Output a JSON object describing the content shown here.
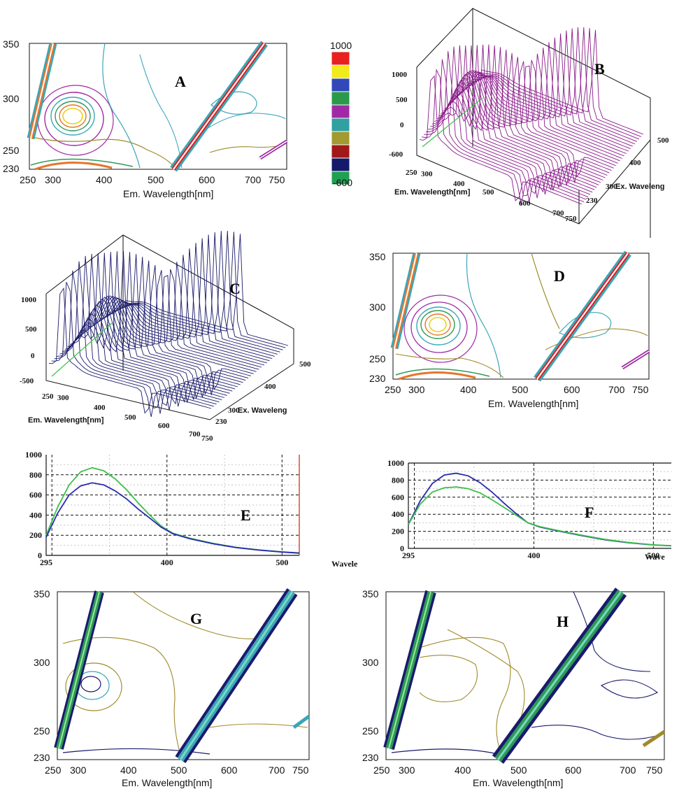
{
  "panels": {
    "A": "A",
    "B": "B",
    "C": "C",
    "D": "D",
    "E": "E",
    "F": "F",
    "G": "G",
    "H": "H"
  },
  "colors": {
    "contour_cyan": "#3aa6b8",
    "contour_purple": "#a02aa6",
    "contour_green": "#2e9a55",
    "contour_olive": "#a08a2a",
    "contour_orange": "#e8742a",
    "contour_red": "#e02020",
    "contour_yellow": "#e8d21a",
    "contour_navy": "#1a1a6e",
    "surface_purple": "#8a1a8a",
    "surface_navy": "#1a1a6a",
    "line_blue": "#2a2ab0",
    "line_green": "#3cc04a",
    "grid_dash": "#111111",
    "vline_red": "#e04a3a"
  },
  "chart_data": [
    {
      "panel": "A",
      "type": "heatmap",
      "xlabel": "Em. Wavelength[nm]",
      "x_ticks": [
        "250",
        "300",
        "400",
        "500",
        "600",
        "700",
        "750"
      ],
      "y_ticks": [
        "350",
        "300",
        "250",
        "230"
      ],
      "xlim": [
        250,
        750
      ],
      "ylim": [
        230,
        350
      ],
      "peak": {
        "x": 335,
        "y": 280
      }
    },
    {
      "panel": "colorbar",
      "type": "heatmap",
      "range": [
        -600,
        1000
      ],
      "labels": {
        "max": "1000",
        "min": "-600"
      },
      "colors": [
        "#e82020",
        "#f2ea1a",
        "#3048b8",
        "#2a9a4a",
        "#a02aa6",
        "#30a0a0",
        "#a09a30",
        "#a01818",
        "#141a6a",
        "#20a050"
      ]
    },
    {
      "panel": "B",
      "type": "area",
      "style": "3d-surface",
      "xlabel": "Em. Wavelength[nm]",
      "ylabel": "Ex. Waveleng",
      "x_ticks": [
        "250",
        "300",
        "400",
        "500",
        "600",
        "700",
        "750"
      ],
      "y_ticks": [
        "230",
        "300",
        "400",
        "500"
      ],
      "z_ticks": [
        "1000",
        "500",
        "0",
        "-600"
      ],
      "zlim": [
        -600,
        1000
      ]
    },
    {
      "panel": "C",
      "type": "area",
      "style": "3d-surface",
      "xlabel": "Em. Wavelength[nm]",
      "ylabel": "Ex. Waveleng",
      "x_ticks": [
        "250",
        "300",
        "400",
        "500",
        "600",
        "700",
        "750"
      ],
      "y_ticks": [
        "230",
        "300",
        "400",
        "500"
      ],
      "z_ticks": [
        "1000",
        "500",
        "0",
        "-500"
      ],
      "zlim": [
        -500,
        1000
      ]
    },
    {
      "panel": "D",
      "type": "heatmap",
      "xlabel": "Em. Wavelength[nm]",
      "x_ticks": [
        "250",
        "300",
        "400",
        "500",
        "600",
        "700",
        "750"
      ],
      "y_ticks": [
        "350",
        "300",
        "250",
        "230"
      ],
      "xlim": [
        250,
        750
      ],
      "ylim": [
        230,
        350
      ],
      "peak": {
        "x": 335,
        "y": 280
      }
    },
    {
      "panel": "E",
      "type": "line",
      "xlabel": "Wavele",
      "x_ticks": [
        "295",
        "400",
        "500"
      ],
      "y_ticks": [
        "1000",
        "800",
        "600",
        "400",
        "200",
        "0"
      ],
      "xlim": [
        295,
        515
      ],
      "ylim": [
        0,
        1000
      ],
      "x": [
        295,
        305,
        315,
        325,
        335,
        345,
        355,
        365,
        375,
        385,
        395,
        405,
        420,
        440,
        460,
        480,
        500,
        515
      ],
      "series": [
        {
          "color": "#3cc04a",
          "values": [
            200,
            480,
            700,
            830,
            870,
            840,
            760,
            650,
            520,
            400,
            290,
            220,
            170,
            120,
            80,
            55,
            35,
            25
          ]
        },
        {
          "color": "#2a2ab0",
          "values": [
            180,
            420,
            600,
            690,
            720,
            700,
            640,
            560,
            460,
            370,
            280,
            215,
            165,
            115,
            78,
            52,
            33,
            22
          ]
        }
      ]
    },
    {
      "panel": "F",
      "type": "line",
      "xlabel": "Wave",
      "x_ticks": [
        "295",
        "400",
        "500"
      ],
      "y_ticks": [
        "1000",
        "800",
        "600",
        "400",
        "200",
        "0"
      ],
      "xlim": [
        295,
        515
      ],
      "ylim": [
        0,
        1000
      ],
      "x": [
        295,
        305,
        315,
        325,
        335,
        345,
        355,
        365,
        375,
        385,
        395,
        405,
        420,
        440,
        460,
        480,
        500,
        515
      ],
      "series": [
        {
          "color": "#2a2ab0",
          "values": [
            280,
            560,
            760,
            860,
            880,
            850,
            770,
            660,
            530,
            410,
            300,
            250,
            205,
            150,
            100,
            65,
            40,
            30
          ]
        },
        {
          "color": "#3cc04a",
          "values": [
            280,
            520,
            660,
            710,
            720,
            700,
            650,
            570,
            480,
            390,
            300,
            255,
            210,
            155,
            105,
            68,
            42,
            32
          ]
        }
      ]
    },
    {
      "panel": "G",
      "type": "heatmap",
      "xlabel": "Em. Wavelength[nm]",
      "x_ticks": [
        "250",
        "300",
        "400",
        "500",
        "600",
        "700",
        "750"
      ],
      "y_ticks": [
        "350",
        "300",
        "250",
        "230"
      ],
      "xlim": [
        250,
        750
      ],
      "ylim": [
        230,
        350
      ]
    },
    {
      "panel": "H",
      "type": "heatmap",
      "xlabel": "Em. Wavelength[nm]",
      "x_ticks": [
        "250",
        "300",
        "400",
        "500",
        "600",
        "700",
        "750"
      ],
      "y_ticks": [
        "350",
        "300",
        "250",
        "230"
      ],
      "xlim": [
        250,
        750
      ],
      "ylim": [
        230,
        350
      ]
    }
  ]
}
